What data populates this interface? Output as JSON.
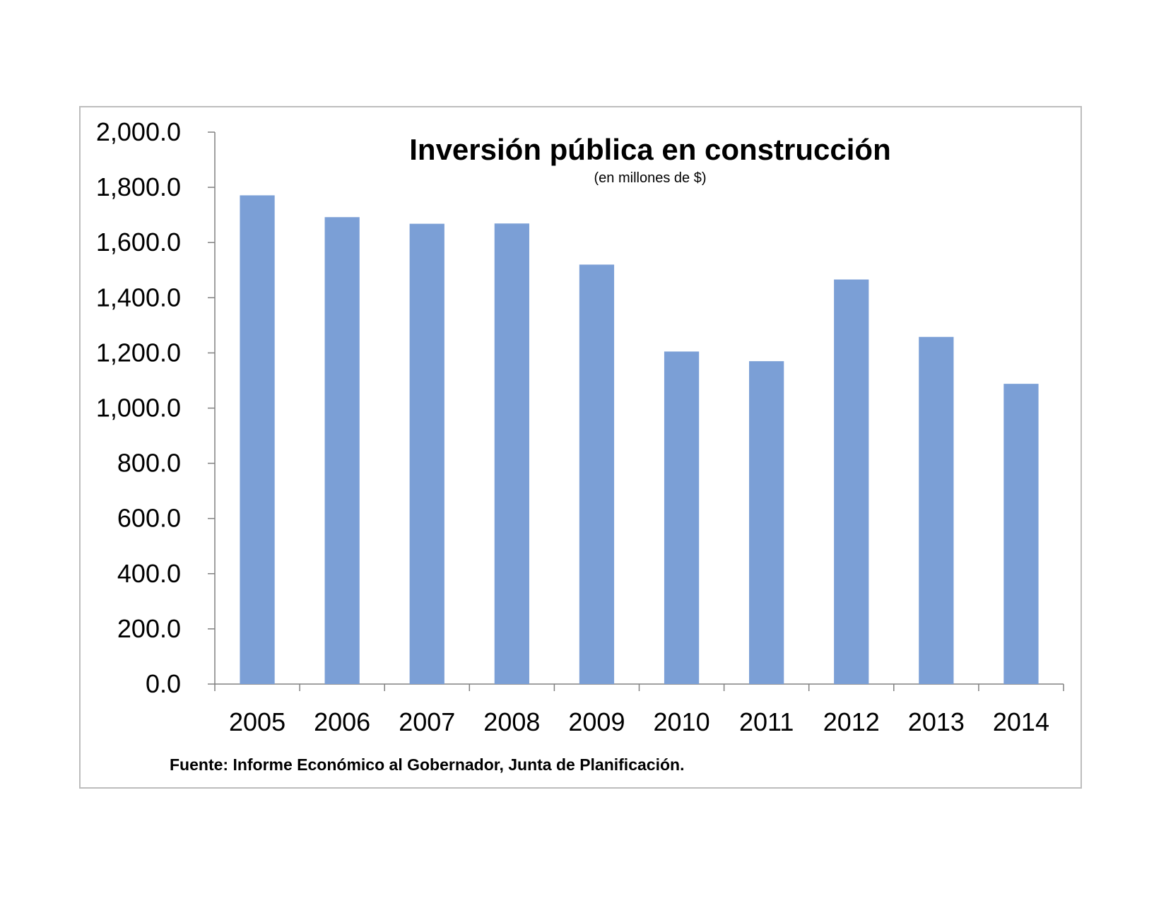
{
  "chart_data": {
    "type": "bar",
    "title": "Inversión pública en construcción",
    "subtitle": "(en millones de $)",
    "xlabel": "",
    "ylabel": "",
    "categories": [
      "2005",
      "2006",
      "2007",
      "2008",
      "2009",
      "2010",
      "2011",
      "2012",
      "2013",
      "2014"
    ],
    "values": [
      1771,
      1692,
      1668,
      1669,
      1520,
      1205,
      1170,
      1466,
      1258,
      1088
    ],
    "ylim": [
      0,
      2000
    ],
    "yticks": [
      "0.0",
      "200.0",
      "400.0",
      "600.0",
      "800.0",
      "1,000.0",
      "1,200.0",
      "1,400.0",
      "1,600.0",
      "1,800.0",
      "2,000.0"
    ],
    "bar_color": "#7b9fd6",
    "grid": false,
    "legend": "none"
  },
  "source": "Fuente: Informe Económico al Gobernador, Junta de Planificación."
}
